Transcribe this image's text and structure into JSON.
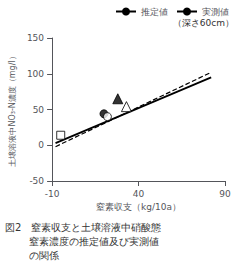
{
  "chart_data": {
    "type": "line",
    "xlabel": "窒素収支（kg/10a）",
    "ylabel": "土壌溶液中NO₃-N濃度（mg/l）",
    "xlim": [
      -10,
      90
    ],
    "ylim": [
      -50,
      150
    ],
    "xticks": [
      -10,
      40,
      90
    ],
    "yticks": [
      -50,
      0,
      50,
      100,
      150
    ],
    "grid": false,
    "legend": "top right",
    "series": [
      {
        "name": "推定値",
        "type": "line",
        "line_style": "solid",
        "color": "#000000",
        "x": [
          -8,
          82
        ],
        "values": [
          3,
          95
        ]
      },
      {
        "name": "実測値",
        "type": "line",
        "line_style": "dashed",
        "color": "#000000",
        "x": [
          -8,
          82
        ],
        "values": [
          -2,
          102
        ]
      },
      {
        "type": "scatter",
        "marker": "open_square",
        "color": "#000000",
        "x": [
          -5
        ],
        "values": [
          14
        ]
      },
      {
        "type": "scatter",
        "marker": "filled_circle",
        "color": "#000000",
        "x": [
          20
        ],
        "values": [
          44
        ]
      },
      {
        "type": "scatter",
        "marker": "open_circle",
        "color": "#000000",
        "x": [
          22
        ],
        "values": [
          40
        ]
      },
      {
        "type": "scatter",
        "marker": "filled_triangle",
        "color": "#000000",
        "x": [
          28
        ],
        "values": [
          65
        ]
      },
      {
        "type": "scatter",
        "marker": "open_triangle",
        "color": "#000000",
        "x": [
          33
        ],
        "values": [
          54
        ]
      }
    ],
    "annotations": [
      "（深さ60cm）"
    ],
    "caption_lines": [
      "図2　窒素収支と土壌溶液中硝酸態",
      "窒素濃度の推定値及び実測値",
      "の関係"
    ]
  }
}
